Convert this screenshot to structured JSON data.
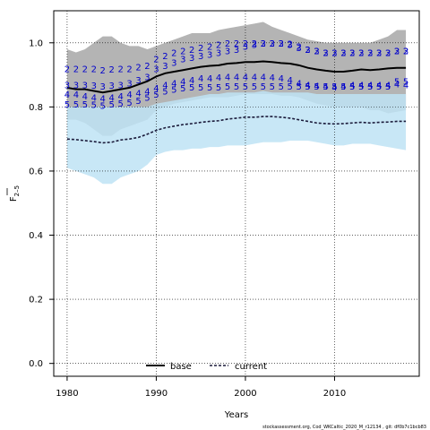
{
  "chart_data": {
    "type": "line",
    "xlabel": "Years",
    "ylabel_main": "F",
    "ylabel_sub": "2–5",
    "xlim": [
      1978.5,
      2019.5
    ],
    "ylim": [
      -0.04,
      1.1
    ],
    "x_ticks": [
      1980,
      1990,
      2000,
      2010
    ],
    "y_ticks": [
      0.0,
      0.2,
      0.4,
      0.6,
      0.8,
      1.0
    ],
    "x_tick_labels": [
      "1980",
      "1990",
      "2000",
      "2010"
    ],
    "y_tick_labels": [
      "0.0",
      "0.2",
      "0.4",
      "0.6",
      "0.8",
      "1.0"
    ],
    "grid": true,
    "legend_position": "bottom",
    "x": [
      1980,
      1981,
      1982,
      1983,
      1984,
      1985,
      1986,
      1987,
      1988,
      1989,
      1990,
      1991,
      1992,
      1993,
      1994,
      1995,
      1996,
      1997,
      1998,
      1999,
      2000,
      2001,
      2002,
      2003,
      2004,
      2005,
      2006,
      2007,
      2008,
      2009,
      2010,
      2011,
      2012,
      2013,
      2014,
      2015,
      2016,
      2017,
      2018
    ],
    "series": [
      {
        "name": "base",
        "color": "#000000",
        "line_style": "solid",
        "values": [
          0.86,
          0.855,
          0.855,
          0.85,
          0.845,
          0.85,
          0.855,
          0.86,
          0.87,
          0.88,
          0.895,
          0.905,
          0.91,
          0.915,
          0.92,
          0.925,
          0.928,
          0.93,
          0.935,
          0.937,
          0.94,
          0.94,
          0.942,
          0.94,
          0.937,
          0.935,
          0.93,
          0.922,
          0.917,
          0.913,
          0.91,
          0.91,
          0.913,
          0.917,
          0.915,
          0.917,
          0.92,
          0.922,
          0.922
        ],
        "band_lower": [
          0.76,
          0.76,
          0.75,
          0.73,
          0.71,
          0.71,
          0.73,
          0.74,
          0.75,
          0.76,
          0.79,
          0.8,
          0.81,
          0.815,
          0.82,
          0.825,
          0.83,
          0.83,
          0.83,
          0.835,
          0.84,
          0.84,
          0.84,
          0.84,
          0.835,
          0.835,
          0.83,
          0.82,
          0.81,
          0.805,
          0.8,
          0.8,
          0.8,
          0.8,
          0.79,
          0.79,
          0.78,
          0.785,
          0.79
        ],
        "band_upper": [
          0.98,
          0.97,
          0.98,
          1.0,
          1.02,
          1.02,
          1.0,
          0.99,
          0.99,
          0.98,
          0.99,
          1.0,
          1.01,
          1.02,
          1.03,
          1.03,
          1.03,
          1.04,
          1.045,
          1.05,
          1.055,
          1.06,
          1.065,
          1.05,
          1.04,
          1.03,
          1.02,
          1.01,
          1.005,
          1.0,
          1.0,
          1.0,
          1.0,
          1.0,
          1.0,
          1.01,
          1.02,
          1.04,
          1.04
        ],
        "band_color": "#b4b4b4"
      },
      {
        "name": "current",
        "color": "#1a1a3a",
        "line_style": "dashed",
        "values": [
          0.7,
          0.698,
          0.695,
          0.692,
          0.688,
          0.69,
          0.697,
          0.7,
          0.705,
          0.715,
          0.727,
          0.735,
          0.74,
          0.745,
          0.748,
          0.752,
          0.755,
          0.757,
          0.762,
          0.765,
          0.768,
          0.768,
          0.77,
          0.77,
          0.768,
          0.765,
          0.76,
          0.755,
          0.75,
          0.748,
          0.747,
          0.748,
          0.75,
          0.752,
          0.75,
          0.752,
          0.753,
          0.755,
          0.755
        ],
        "band_lower": [
          0.61,
          0.6,
          0.59,
          0.58,
          0.56,
          0.56,
          0.58,
          0.59,
          0.6,
          0.62,
          0.65,
          0.66,
          0.665,
          0.665,
          0.67,
          0.67,
          0.675,
          0.675,
          0.68,
          0.68,
          0.68,
          0.685,
          0.69,
          0.69,
          0.69,
          0.695,
          0.695,
          0.695,
          0.69,
          0.685,
          0.68,
          0.68,
          0.685,
          0.685,
          0.685,
          0.68,
          0.675,
          0.67,
          0.665
        ],
        "band_upper": [
          0.8,
          0.8,
          0.8,
          0.8,
          0.8,
          0.8,
          0.8,
          0.8,
          0.8,
          0.8,
          0.81,
          0.815,
          0.82,
          0.825,
          0.83,
          0.835,
          0.84,
          0.84,
          0.845,
          0.845,
          0.845,
          0.845,
          0.85,
          0.845,
          0.845,
          0.845,
          0.845,
          0.845,
          0.84,
          0.84,
          0.84,
          0.84,
          0.84,
          0.84,
          0.84,
          0.84,
          0.84,
          0.84,
          0.84
        ],
        "band_color": "#bee3f5"
      }
    ],
    "age_series": [
      {
        "label": "2",
        "values": [
          0.92,
          0.92,
          0.92,
          0.92,
          0.915,
          0.918,
          0.92,
          0.92,
          0.925,
          0.93,
          0.95,
          0.96,
          0.97,
          0.975,
          0.98,
          0.985,
          0.99,
          0.995,
          1.0,
          1.0,
          1.0,
          1.0,
          1.0,
          1.0,
          1.0,
          0.998,
          0.99,
          0.98,
          0.975,
          0.97,
          0.97,
          0.97,
          0.97,
          0.97,
          0.97,
          0.97,
          0.97,
          0.975,
          0.975
        ]
      },
      {
        "label": "3",
        "values": [
          0.87,
          0.87,
          0.87,
          0.868,
          0.865,
          0.868,
          0.87,
          0.875,
          0.885,
          0.895,
          0.92,
          0.93,
          0.94,
          0.95,
          0.955,
          0.96,
          0.965,
          0.97,
          0.975,
          0.98,
          0.99,
          0.995,
          1.0,
          1.0,
          1.0,
          0.995,
          0.985,
          0.98,
          0.975,
          0.97,
          0.97,
          0.97,
          0.97,
          0.97,
          0.97,
          0.97,
          0.97,
          0.975,
          0.975
        ]
      },
      {
        "label": "4",
        "values": [
          0.84,
          0.84,
          0.835,
          0.83,
          0.828,
          0.83,
          0.835,
          0.84,
          0.845,
          0.85,
          0.86,
          0.87,
          0.875,
          0.88,
          0.885,
          0.89,
          0.89,
          0.893,
          0.895,
          0.895,
          0.895,
          0.895,
          0.895,
          0.893,
          0.89,
          0.885,
          0.875,
          0.87,
          0.867,
          0.865,
          0.863,
          0.865,
          0.87,
          0.87,
          0.87,
          0.87,
          0.87,
          0.872,
          0.87
        ]
      },
      {
        "label": "5",
        "values": [
          0.81,
          0.81,
          0.81,
          0.808,
          0.805,
          0.81,
          0.812,
          0.815,
          0.82,
          0.83,
          0.84,
          0.85,
          0.855,
          0.86,
          0.862,
          0.863,
          0.863,
          0.863,
          0.865,
          0.865,
          0.865,
          0.865,
          0.865,
          0.865,
          0.865,
          0.865,
          0.865,
          0.865,
          0.865,
          0.865,
          0.865,
          0.865,
          0.865,
          0.865,
          0.865,
          0.865,
          0.865,
          0.88,
          0.88
        ]
      }
    ],
    "age_label_color": "#0000cc",
    "footer": "stockassessment.org,  Cod_WKCaltic_2020_M_r12134 ,  git:  df0b7c1bcb83"
  }
}
